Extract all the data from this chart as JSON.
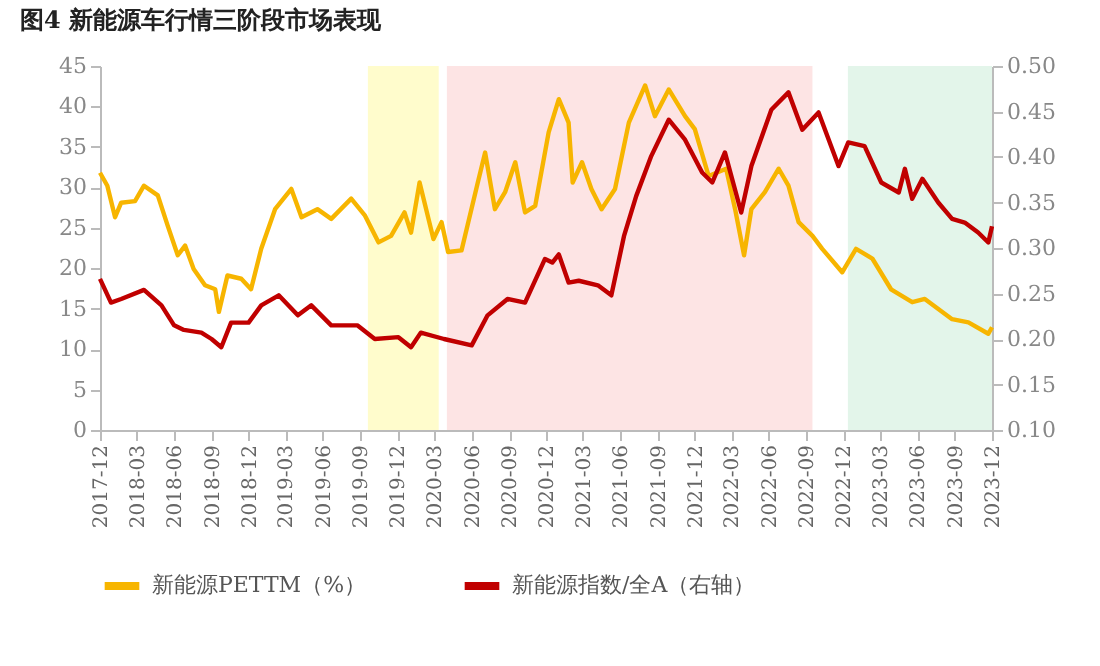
{
  "chart_data": {
    "type": "line",
    "title": "图4  新能源车行情三阶段市场表现",
    "xlim": [
      "2017-12-01",
      "2023-12-01"
    ],
    "xticks": [
      "2017-12",
      "2018-03",
      "2018-06",
      "2018-09",
      "2018-12",
      "2019-03",
      "2019-06",
      "2019-09",
      "2019-12",
      "2020-03",
      "2020-06",
      "2020-09",
      "2020-12",
      "2021-03",
      "2021-06",
      "2021-09",
      "2021-12",
      "2022-03",
      "2022-06",
      "2022-09",
      "2022-12",
      "2023-03",
      "2023-06",
      "2023-09",
      "2023-12"
    ],
    "ylim": [
      0,
      45
    ],
    "yticks": [
      0,
      5,
      10,
      15,
      20,
      25,
      30,
      35,
      40,
      45
    ],
    "y2lim": [
      0.1,
      0.5
    ],
    "y2ticks": [
      {
        "value": 0.1,
        "label": "0.10"
      },
      {
        "value": 0.15,
        "label": "0.15"
      },
      {
        "value": 0.2,
        "label": "0.20"
      },
      {
        "value": 0.25,
        "label": "0.25"
      },
      {
        "value": 0.3,
        "label": "0.30"
      },
      {
        "value": 0.35,
        "label": "0.35"
      },
      {
        "value": 0.4,
        "label": "0.40"
      },
      {
        "value": 0.45,
        "label": "0.45"
      },
      {
        "value": 0.5,
        "label": "0.50"
      }
    ],
    "grid": false,
    "legend": "bottom",
    "marker": "none",
    "line_style": "solid",
    "bands": [
      {
        "axis": "x",
        "from": "2019-09-20",
        "to": "2020-03-12",
        "color": "#fffccc"
      },
      {
        "axis": "x",
        "from": "2020-04-01",
        "to": "2022-09-16",
        "color": "#fde4e4"
      },
      {
        "axis": "x",
        "from": "2022-12-12",
        "to": "2023-12-01",
        "color": "#e3f5ea"
      }
    ],
    "series": [
      {
        "name": "新能源PETTM（%）",
        "color": "#f7b500",
        "x": [
          "2017-12-01",
          "2017-12-19",
          "2018-01-07",
          "2018-01-22",
          "2018-02-25",
          "2018-03-19",
          "2018-04-22",
          "2018-05-16",
          "2018-06-10",
          "2018-06-28",
          "2018-07-19",
          "2018-08-16",
          "2018-09-10",
          "2018-09-19",
          "2018-10-10",
          "2018-11-13",
          "2018-12-07",
          "2019-01-01",
          "2019-02-04",
          "2019-03-16",
          "2019-04-10",
          "2019-05-19",
          "2019-06-22",
          "2019-08-10",
          "2019-09-13",
          "2019-10-16",
          "2019-11-16",
          "2019-12-19",
          "2020-01-04",
          "2020-01-25",
          "2020-02-28",
          "2020-03-19",
          "2020-04-04",
          "2020-05-07",
          "2020-06-16",
          "2020-07-04",
          "2020-07-28",
          "2020-08-22",
          "2020-09-16",
          "2020-10-10",
          "2020-11-04",
          "2020-12-07",
          "2021-01-01",
          "2021-01-25",
          "2021-02-04",
          "2021-02-27",
          "2021-03-22",
          "2021-04-16",
          "2021-05-19",
          "2021-06-22",
          "2021-08-01",
          "2021-08-25",
          "2021-09-28",
          "2021-11-07",
          "2021-12-01",
          "2022-01-04",
          "2022-02-16",
          "2022-03-10",
          "2022-04-01",
          "2022-04-19",
          "2022-05-22",
          "2022-06-25",
          "2022-07-19",
          "2022-08-13",
          "2022-09-16",
          "2022-10-10",
          "2022-11-28",
          "2023-01-01",
          "2023-02-10",
          "2023-03-28",
          "2023-05-19",
          "2023-06-19",
          "2023-08-25",
          "2023-10-04",
          "2023-11-22",
          "2023-12-01"
        ],
        "values": [
          31.8,
          30.2,
          26.3,
          28.1,
          28.3,
          30.2,
          29,
          25.3,
          21.6,
          22.8,
          19.9,
          17.9,
          17.4,
          14.6,
          19.1,
          18.7,
          17.4,
          22.4,
          27.3,
          29.8,
          26.3,
          27.3,
          26.1,
          28.6,
          26.5,
          23.2,
          24,
          26.9,
          24.4,
          30.6,
          23.6,
          25.7,
          22,
          22.2,
          30.6,
          34.3,
          27.3,
          29.4,
          33.1,
          26.9,
          27.7,
          36.8,
          40.9,
          38,
          30.6,
          33.1,
          29.8,
          27.3,
          29.8,
          38,
          42.6,
          38.8,
          42.1,
          38.8,
          37.2,
          31.4,
          32.3,
          27.3,
          21.6,
          27.3,
          29.4,
          32.3,
          30.2,
          25.7,
          24,
          22.4,
          19.5,
          22.4,
          21.2,
          17.4,
          15.8,
          16.2,
          13.7,
          13.3,
          11.9,
          12.7
        ]
      },
      {
        "name": "新能源指数/全A（右轴）",
        "color": "#c00000",
        "axis": "y2",
        "x": [
          "2017-12-01",
          "2017-12-28",
          "2018-01-22",
          "2018-03-19",
          "2018-05-01",
          "2018-06-01",
          "2018-06-25",
          "2018-08-07",
          "2018-09-01",
          "2018-09-25",
          "2018-10-19",
          "2018-12-01",
          "2019-01-01",
          "2019-02-13",
          "2019-04-01",
          "2019-05-04",
          "2019-06-22",
          "2019-08-25",
          "2019-10-07",
          "2019-12-04",
          "2020-01-04",
          "2020-01-28",
          "2020-03-25",
          "2020-06-01",
          "2020-07-10",
          "2020-08-28",
          "2020-10-10",
          "2020-11-28",
          "2020-12-16",
          "2021-01-01",
          "2021-01-25",
          "2021-02-19",
          "2021-04-07",
          "2021-05-10",
          "2021-06-10",
          "2021-07-10",
          "2021-08-16",
          "2021-09-28",
          "2021-11-07",
          "2021-12-19",
          "2022-01-13",
          "2022-02-13",
          "2022-03-25",
          "2022-04-19",
          "2022-06-07",
          "2022-07-19",
          "2022-08-22",
          "2022-10-01",
          "2022-11-19",
          "2022-12-13",
          "2023-01-22",
          "2023-03-04",
          "2023-04-16",
          "2023-05-01",
          "2023-05-19",
          "2023-06-13",
          "2023-07-22",
          "2023-08-25",
          "2023-09-25",
          "2023-10-28",
          "2023-11-22",
          "2023-12-01"
        ],
        "values": [
          0.266,
          0.24,
          0.244,
          0.254,
          0.237,
          0.215,
          0.21,
          0.207,
          0.2,
          0.191,
          0.218,
          0.218,
          0.237,
          0.248,
          0.226,
          0.237,
          0.215,
          0.215,
          0.2,
          0.202,
          0.191,
          0.207,
          0.2,
          0.193,
          0.226,
          0.244,
          0.24,
          0.288,
          0.284,
          0.293,
          0.262,
          0.264,
          0.259,
          0.248,
          0.313,
          0.357,
          0.401,
          0.441,
          0.419,
          0.383,
          0.372,
          0.405,
          0.339,
          0.39,
          0.452,
          0.471,
          0.43,
          0.449,
          0.39,
          0.416,
          0.412,
          0.372,
          0.361,
          0.387,
          0.354,
          0.376,
          0.35,
          0.332,
          0.328,
          0.317,
          0.306,
          0.324
        ]
      }
    ]
  }
}
